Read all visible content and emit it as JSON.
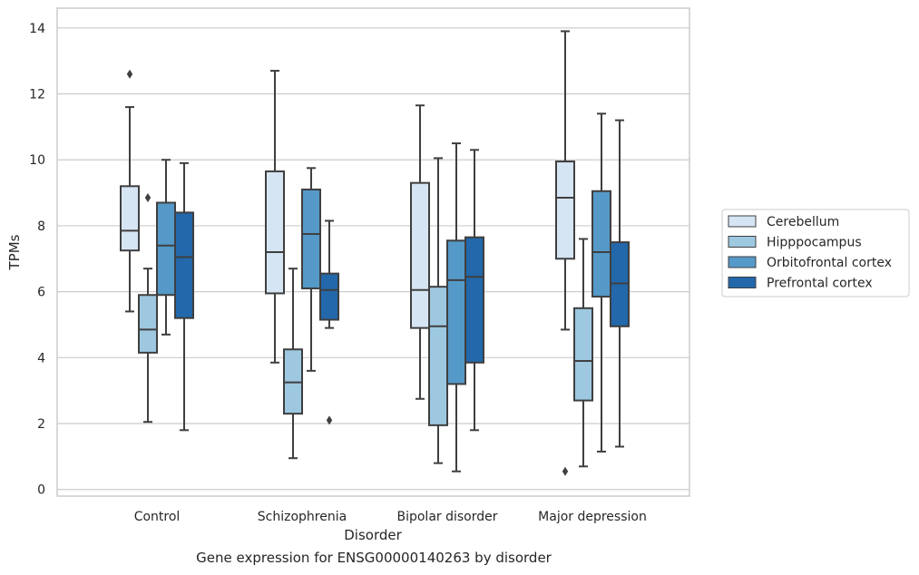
{
  "chart_data": {
    "type": "box",
    "title": "",
    "caption": "Gene expression for ENSG00000140263 by disorder",
    "xlabel": "Disorder",
    "ylabel": "TPMs",
    "ylim": [
      -0.2,
      14.6
    ],
    "yticks": [
      0,
      2,
      4,
      6,
      8,
      10,
      12,
      14
    ],
    "grid": "horizontal",
    "legend_position": "right",
    "categories": [
      "Control",
      "Schizophrenia",
      "Bipolar disorder",
      "Major depression"
    ],
    "series": [
      {
        "name": "Cerebellum",
        "color": "#d6e5f4",
        "boxes": [
          {
            "whislo": 5.4,
            "q1": 7.25,
            "med": 7.85,
            "q3": 9.2,
            "whishi": 11.6,
            "fliers": [
              12.6
            ]
          },
          {
            "whislo": 3.85,
            "q1": 5.95,
            "med": 7.2,
            "q3": 9.65,
            "whishi": 12.7,
            "fliers": []
          },
          {
            "whislo": 2.75,
            "q1": 4.9,
            "med": 6.05,
            "q3": 9.3,
            "whishi": 11.65,
            "fliers": []
          },
          {
            "whislo": 4.85,
            "q1": 7.0,
            "med": 8.85,
            "q3": 9.95,
            "whishi": 13.9,
            "fliers": [
              0.55
            ]
          }
        ]
      },
      {
        "name": "Hipppocampus",
        "color": "#9dc8e0",
        "boxes": [
          {
            "whislo": 2.05,
            "q1": 4.15,
            "med": 4.85,
            "q3": 5.9,
            "whishi": 6.7,
            "fliers": [
              8.85
            ]
          },
          {
            "whislo": 0.95,
            "q1": 2.3,
            "med": 3.25,
            "q3": 4.25,
            "whishi": 6.7,
            "fliers": []
          },
          {
            "whislo": 0.8,
            "q1": 1.95,
            "med": 4.95,
            "q3": 6.15,
            "whishi": 10.05,
            "fliers": []
          },
          {
            "whislo": 0.7,
            "q1": 2.7,
            "med": 3.9,
            "q3": 5.5,
            "whishi": 7.6,
            "fliers": []
          }
        ]
      },
      {
        "name": "Orbitofrontal cortex",
        "color": "#5599c8",
        "boxes": [
          {
            "whislo": 4.7,
            "q1": 5.9,
            "med": 7.4,
            "q3": 8.7,
            "whishi": 10.0,
            "fliers": []
          },
          {
            "whislo": 3.6,
            "q1": 6.1,
            "med": 7.75,
            "q3": 9.1,
            "whishi": 9.75,
            "fliers": []
          },
          {
            "whislo": 0.55,
            "q1": 3.2,
            "med": 6.35,
            "q3": 7.55,
            "whishi": 10.5,
            "fliers": []
          },
          {
            "whislo": 1.15,
            "q1": 5.85,
            "med": 7.2,
            "q3": 9.05,
            "whishi": 11.4,
            "fliers": []
          }
        ]
      },
      {
        "name": "Prefrontal cortex",
        "color": "#2268ab",
        "boxes": [
          {
            "whislo": 1.8,
            "q1": 5.2,
            "med": 7.05,
            "q3": 8.4,
            "whishi": 9.9,
            "fliers": []
          },
          {
            "whislo": 4.9,
            "q1": 5.15,
            "med": 6.05,
            "q3": 6.55,
            "whishi": 8.15,
            "fliers": [
              2.1
            ]
          },
          {
            "whislo": 1.8,
            "q1": 3.85,
            "med": 6.45,
            "q3": 7.65,
            "whishi": 10.3,
            "fliers": []
          },
          {
            "whislo": 1.3,
            "q1": 4.95,
            "med": 6.25,
            "q3": 7.5,
            "whishi": 11.2,
            "fliers": []
          }
        ]
      }
    ]
  }
}
